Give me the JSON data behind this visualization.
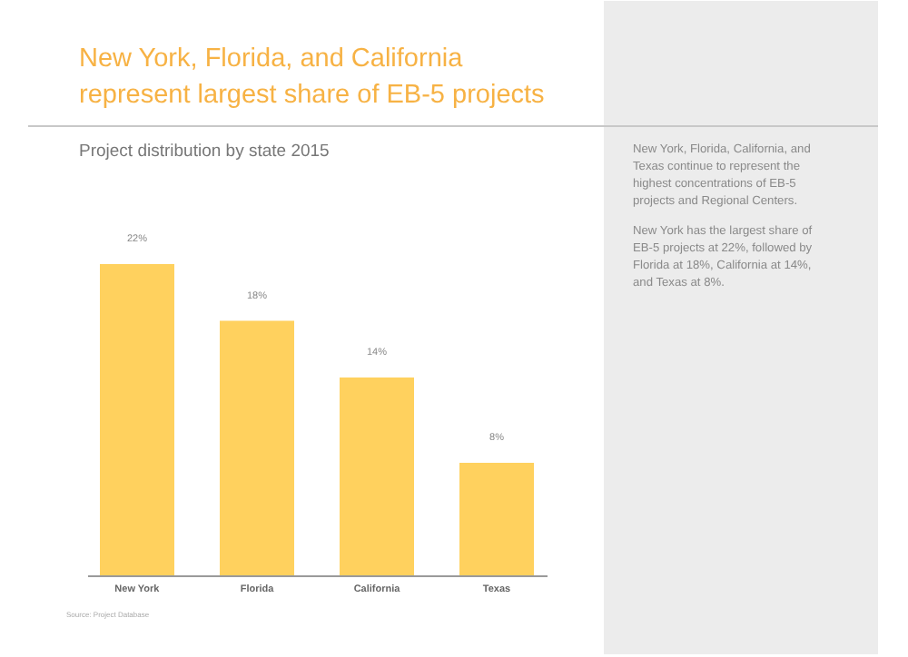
{
  "chart_data": {
    "type": "bar",
    "title": "New York, Florida, and California represent largest share of EB-5 projects",
    "subtitle": "Project distribution by state 2015",
    "categories": [
      "New York",
      "Florida",
      "California",
      "Texas"
    ],
    "values": [
      22,
      18,
      14,
      8
    ],
    "value_labels": [
      "22%",
      "18%",
      "14%",
      "8%"
    ],
    "color": "#ffd15e",
    "annotations": [
      "New York, Florida, California, and Texas continue to represent the highest concentrations of EB-5 projects and Regional Centers.",
      "New York has the largest share of EB-5 projects at 22%, followed by Florida at 18%, California at 14%, and Texas at 8%.",
      "Source: Project Database"
    ]
  }
}
